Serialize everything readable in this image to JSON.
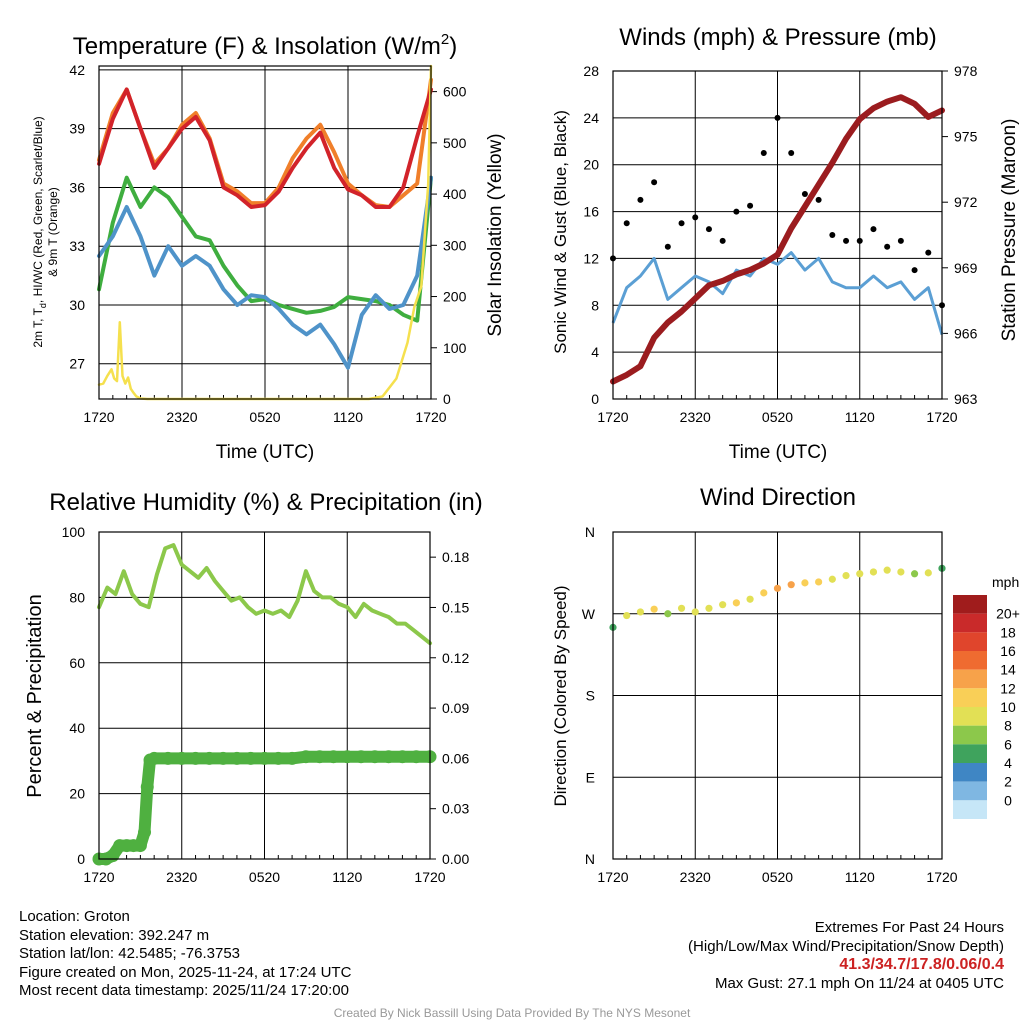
{
  "chart_data": [
    {
      "id": "temp",
      "type": "line",
      "title": "Temperature (F) & Insolation (W/m",
      "title_sup": "2",
      "title_end": ")",
      "xlabel": "Time (UTC)",
      "ylabel_lines": [
        "2m T, T",
        "d",
        ", HI/WC (Red, Green, Scarlet/Blue)",
        "& 9m T (Orange)"
      ],
      "ylabel_right": "Solar Insolation (Yellow)",
      "xticks": [
        "1720",
        "2320",
        "0520",
        "1120",
        "1720"
      ],
      "yticks_left": [
        "27",
        "30",
        "33",
        "36",
        "39",
        "42"
      ],
      "ylim_left": [
        25.2,
        42.2
      ],
      "yticks_right": [
        "0",
        "100",
        "200",
        "300",
        "400",
        "500",
        "600"
      ],
      "ylim_right": [
        0,
        650
      ],
      "series": [
        {
          "name": "9m T",
          "axis": "left",
          "color": "#f07f2a",
          "x": [
            0,
            1,
            2,
            3,
            4,
            5,
            6,
            7,
            8,
            9,
            10,
            11,
            12,
            13,
            14,
            15,
            16,
            17,
            18,
            19,
            20,
            21,
            22,
            23,
            24
          ],
          "values": [
            37.4,
            39.8,
            41.0,
            39.0,
            37.2,
            38.0,
            39.2,
            39.8,
            38.5,
            36.2,
            35.8,
            35.2,
            35.2,
            36.0,
            37.5,
            38.5,
            39.2,
            37.8,
            36.2,
            35.6,
            35.1,
            35.0,
            35.6,
            36.2,
            41.5
          ]
        },
        {
          "name": "2m T",
          "axis": "left",
          "color": "#d2232a",
          "x": [
            0,
            1,
            2,
            3,
            4,
            5,
            6,
            7,
            8,
            9,
            10,
            11,
            12,
            13,
            14,
            15,
            16,
            17,
            18,
            19,
            20,
            21,
            22,
            23,
            24
          ],
          "values": [
            37.2,
            39.5,
            41.0,
            39.0,
            37.0,
            38.0,
            39.0,
            39.6,
            38.4,
            36.0,
            35.6,
            35.0,
            35.1,
            35.8,
            37.0,
            38.0,
            38.8,
            37.0,
            35.9,
            35.6,
            35.0,
            35.0,
            36.0,
            38.6,
            41.0
          ]
        },
        {
          "name": "Td",
          "axis": "left",
          "color": "#3fae3f",
          "x": [
            0,
            1,
            2,
            3,
            4,
            5,
            6,
            7,
            8,
            9,
            10,
            11,
            12,
            13,
            14,
            15,
            16,
            17,
            18,
            19,
            20,
            21,
            22,
            23,
            24
          ],
          "values": [
            30.8,
            34.2,
            36.5,
            35.0,
            36.0,
            35.5,
            34.5,
            33.5,
            33.3,
            32.0,
            31.0,
            30.2,
            30.3,
            30.0,
            29.8,
            29.6,
            29.7,
            29.9,
            30.4,
            30.3,
            30.2,
            30.0,
            29.5,
            29.2,
            36.5
          ]
        },
        {
          "name": "HI/WC",
          "axis": "left",
          "color": "#4f93c9",
          "x": [
            0,
            1,
            2,
            3,
            4,
            5,
            6,
            7,
            8,
            9,
            10,
            11,
            12,
            13,
            14,
            15,
            16,
            17,
            18,
            19,
            20,
            21,
            22,
            23,
            24
          ],
          "values": [
            32.5,
            33.5,
            35.0,
            33.5,
            31.5,
            33.0,
            32.0,
            32.5,
            32.0,
            30.8,
            30.0,
            30.5,
            30.4,
            29.8,
            29.0,
            28.5,
            29.0,
            28.0,
            26.8,
            29.5,
            30.5,
            29.8,
            30.0,
            31.5,
            36.5
          ]
        },
        {
          "name": "Solar Insolation",
          "axis": "right",
          "color": "#f5e04e",
          "x": [
            0,
            0.3,
            0.6,
            0.9,
            1.1,
            1.3,
            1.5,
            1.7,
            1.9,
            2.1,
            2.3,
            2.5,
            2.7,
            3.0,
            3.5,
            4.0,
            8,
            12,
            16,
            18,
            19.5,
            20.5,
            21.5,
            22.3,
            22.8,
            23.3,
            23.8,
            24
          ],
          "values": [
            28,
            30,
            45,
            58,
            40,
            35,
            150,
            45,
            30,
            42,
            20,
            12,
            5,
            1,
            0,
            0,
            0,
            0,
            0,
            0,
            0,
            5,
            40,
            110,
            180,
            220,
            420,
            650
          ]
        }
      ]
    },
    {
      "id": "wind",
      "type": "line",
      "title": "Winds (mph) & Pressure (mb)",
      "xlabel": "Time (UTC)",
      "ylabel": "Sonic Wind & Gust (Blue, Black)",
      "ylabel_right": "Station Pressure (Maroon)",
      "xticks": [
        "1720",
        "2320",
        "0520",
        "1120",
        "1720"
      ],
      "yticks_left": [
        "0",
        "4",
        "8",
        "12",
        "16",
        "20",
        "24",
        "28"
      ],
      "ylim_left": [
        0,
        28
      ],
      "yticks_right": [
        "963",
        "966",
        "969",
        "972",
        "975",
        "978"
      ],
      "ylim_right": [
        963,
        978
      ],
      "series": [
        {
          "name": "Sonic Wind",
          "axis": "left",
          "color": "#5b9fd4",
          "x": [
            0,
            1,
            2,
            3,
            4,
            5,
            6,
            7,
            8,
            9,
            10,
            11,
            12,
            13,
            14,
            15,
            16,
            17,
            18,
            19,
            20,
            21,
            22,
            23,
            24
          ],
          "values": [
            6.5,
            9.5,
            10.5,
            12,
            8.5,
            9.5,
            10.5,
            10,
            9,
            11,
            10.5,
            12,
            11.5,
            12.5,
            11,
            12,
            10,
            9.5,
            9.5,
            10.5,
            9.5,
            10,
            8.5,
            9.5,
            5.5
          ]
        },
        {
          "name": "Gust",
          "axis": "left",
          "color": "#000000",
          "x": [
            0,
            1,
            2,
            3,
            4,
            5,
            6,
            7,
            8,
            9,
            10,
            11,
            12,
            13,
            14,
            15,
            16,
            17,
            18,
            19,
            20,
            21,
            22,
            23,
            24
          ],
          "values": [
            12,
            15,
            17,
            18.5,
            13,
            15,
            15.5,
            14.5,
            13.5,
            16,
            16.5,
            21,
            24,
            21,
            17.5,
            17,
            14,
            13.5,
            13.5,
            14.5,
            13,
            13.5,
            11,
            12.5,
            8
          ]
        },
        {
          "name": "Station Pressure",
          "axis": "right",
          "color": "#9b1c1f",
          "x": [
            0,
            1,
            2,
            3,
            4,
            5,
            6,
            7,
            8,
            9,
            10,
            11,
            12,
            13,
            14,
            15,
            16,
            17,
            18,
            19,
            20,
            21,
            22,
            23,
            24
          ],
          "values": [
            963.8,
            964.1,
            964.5,
            965.8,
            966.5,
            967.0,
            967.6,
            968.2,
            968.4,
            968.7,
            968.9,
            969.2,
            969.6,
            970.8,
            971.8,
            972.8,
            973.8,
            974.9,
            975.8,
            976.3,
            976.6,
            976.8,
            976.5,
            975.9,
            976.2
          ]
        }
      ]
    },
    {
      "id": "rh",
      "type": "line",
      "title": "Relative Humidity (%) & Precipitation (in)",
      "xlabel": "",
      "ylabel": "Percent & Precipitation",
      "xticks": [
        "1720",
        "2320",
        "0520",
        "1120",
        "1720"
      ],
      "yticks_left": [
        "0",
        "20",
        "40",
        "60",
        "80",
        "100"
      ],
      "ylim_left": [
        0,
        100
      ],
      "yticks_right": [
        "0.00",
        "0.03",
        "0.06",
        "0.09",
        "0.12",
        "0.15",
        "0.18"
      ],
      "ylim_right": [
        0,
        0.195
      ],
      "series": [
        {
          "name": "Relative Humidity",
          "axis": "left",
          "color": "#8cc84b",
          "x": [
            0,
            0.6,
            1.2,
            1.8,
            2.4,
            3.0,
            3.6,
            4.2,
            4.8,
            5.4,
            6.0,
            6.6,
            7.2,
            7.8,
            8.4,
            9.0,
            9.6,
            10.2,
            10.8,
            11.4,
            12.0,
            12.6,
            13.2,
            13.8,
            14.4,
            15.0,
            15.6,
            16.2,
            16.8,
            17.4,
            18.0,
            18.6,
            19.2,
            19.8,
            20.4,
            21.0,
            21.6,
            22.2,
            22.8,
            23.4,
            24
          ],
          "values": [
            77,
            83,
            81,
            88,
            81,
            78,
            77,
            87,
            95,
            96,
            90,
            88,
            86,
            89,
            85,
            82,
            79,
            80,
            77,
            75,
            76,
            75,
            76,
            74,
            79,
            88,
            82,
            80,
            80,
            78,
            77,
            74,
            78,
            76,
            75,
            74,
            72,
            72,
            70,
            68,
            66
          ]
        },
        {
          "name": "Precipitation",
          "axis": "right",
          "color": "#4fb040",
          "x": [
            0,
            0.5,
            1.0,
            1.5,
            2.0,
            2.5,
            3.0,
            3.3,
            3.5,
            3.7,
            4.0,
            5,
            6,
            7,
            8,
            9,
            10,
            11,
            12,
            13,
            14,
            15,
            16,
            17,
            18,
            19,
            20,
            21,
            22,
            23,
            24
          ],
          "values": [
            0,
            0,
            0.002,
            0.008,
            0.008,
            0.008,
            0.008,
            0.016,
            0.043,
            0.059,
            0.06,
            0.06,
            0.06,
            0.06,
            0.06,
            0.06,
            0.06,
            0.06,
            0.06,
            0.06,
            0.06,
            0.061,
            0.061,
            0.061,
            0.061,
            0.061,
            0.061,
            0.061,
            0.061,
            0.061,
            0.061
          ]
        }
      ]
    },
    {
      "id": "dir",
      "type": "scatter",
      "title": "Wind Direction",
      "xlabel": "",
      "ylabel": "Direction (Colored By Speed)",
      "xticks": [
        "1720",
        "2320",
        "0520",
        "1120",
        "1720"
      ],
      "yticks": [
        "N",
        "E",
        "S",
        "W",
        "N"
      ],
      "ylim": [
        0,
        360
      ],
      "legend_title": "mph",
      "legend_labels": [
        "20+",
        "18",
        "16",
        "14",
        "12",
        "10",
        "8",
        "6",
        "4",
        "2",
        "0"
      ],
      "legend_colors": [
        "#a01c1c",
        "#c92a2a",
        "#e0452c",
        "#ef6b30",
        "#f7a24a",
        "#f9cf57",
        "#e2e055",
        "#8cc84b",
        "#3fa35d",
        "#3f86c4",
        "#7fb7e2",
        "#c6e6f7"
      ],
      "series": [
        {
          "name": "Wind Direction",
          "x": [
            0,
            1,
            2,
            3,
            4,
            5,
            6,
            7,
            8,
            9,
            10,
            11,
            12,
            13,
            14,
            15,
            16,
            17,
            18,
            19,
            20,
            21,
            22,
            23,
            24
          ],
          "values": [
            255,
            268,
            272,
            275,
            270,
            276,
            272,
            276,
            280,
            282,
            286,
            293,
            298,
            302,
            304,
            305,
            308,
            312,
            314,
            316,
            318,
            316,
            314,
            315,
            320
          ],
          "speeds": [
            6,
            9,
            10,
            12,
            8,
            9,
            10,
            10,
            9,
            11,
            10,
            12,
            13,
            13,
            11,
            12,
            10,
            9,
            9,
            10,
            9,
            10,
            8,
            9,
            5
          ]
        }
      ]
    }
  ],
  "info": {
    "location": "Location: Groton",
    "elevation": "Station elevation: 392.247 m",
    "latlon": "Station lat/lon: 42.5485; -76.3753",
    "created": "Figure created on Mon, 2025-11-24, at 17:24 UTC",
    "recent": "Most recent data timestamp: 2025/11/24 17:20:00"
  },
  "extremes": {
    "title": "Extremes For Past 24 Hours",
    "subtitle": "(High/Low/Max Wind/Precipitation/Snow Depth)",
    "values": "41.3/34.7/17.8/0.06/0.4",
    "max_gust": "Max Gust: 27.1 mph On 11/24 at 0405 UTC"
  },
  "credit": "Created By Nick Bassill Using Data Provided By The NYS Mesonet"
}
